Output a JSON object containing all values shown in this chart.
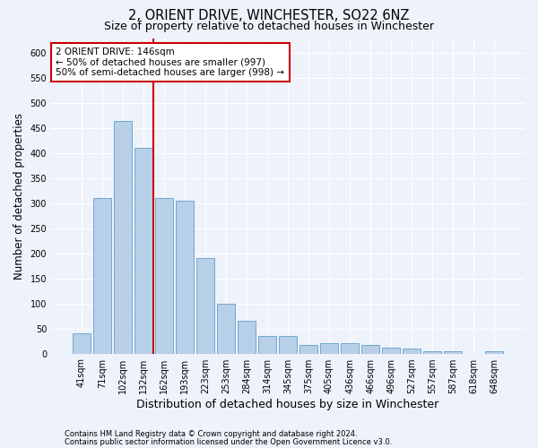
{
  "title1": "2, ORIENT DRIVE, WINCHESTER, SO22 6NZ",
  "title2": "Size of property relative to detached houses in Winchester",
  "xlabel": "Distribution of detached houses by size in Winchester",
  "ylabel": "Number of detached properties",
  "categories": [
    "41sqm",
    "71sqm",
    "102sqm",
    "132sqm",
    "162sqm",
    "193sqm",
    "223sqm",
    "253sqm",
    "284sqm",
    "314sqm",
    "345sqm",
    "375sqm",
    "405sqm",
    "436sqm",
    "466sqm",
    "496sqm",
    "527sqm",
    "557sqm",
    "587sqm",
    "618sqm",
    "648sqm"
  ],
  "values": [
    40,
    310,
    465,
    410,
    310,
    305,
    190,
    100,
    65,
    35,
    35,
    18,
    20,
    20,
    18,
    12,
    10,
    5,
    5,
    0,
    5
  ],
  "bar_color": "#b8cfe8",
  "bar_edge_color": "#6fa8d0",
  "vline_color": "#cc0000",
  "annotation_text": "2 ORIENT DRIVE: 146sqm\n← 50% of detached houses are smaller (997)\n50% of semi-detached houses are larger (998) →",
  "annotation_box_color": "#ffffff",
  "annotation_box_edge": "#cc0000",
  "ylim": [
    0,
    630
  ],
  "yticks": [
    0,
    50,
    100,
    150,
    200,
    250,
    300,
    350,
    400,
    450,
    500,
    550,
    600
  ],
  "footer1": "Contains HM Land Registry data © Crown copyright and database right 2024.",
  "footer2": "Contains public sector information licensed under the Open Government Licence v3.0.",
  "bg_color": "#eef2fa",
  "grid_color": "#ffffff",
  "title1_fontsize": 10.5,
  "title2_fontsize": 9,
  "xlabel_fontsize": 9,
  "ylabel_fontsize": 8.5,
  "annotation_fontsize": 7.5,
  "tick_fontsize": 7,
  "footer_fontsize": 6
}
